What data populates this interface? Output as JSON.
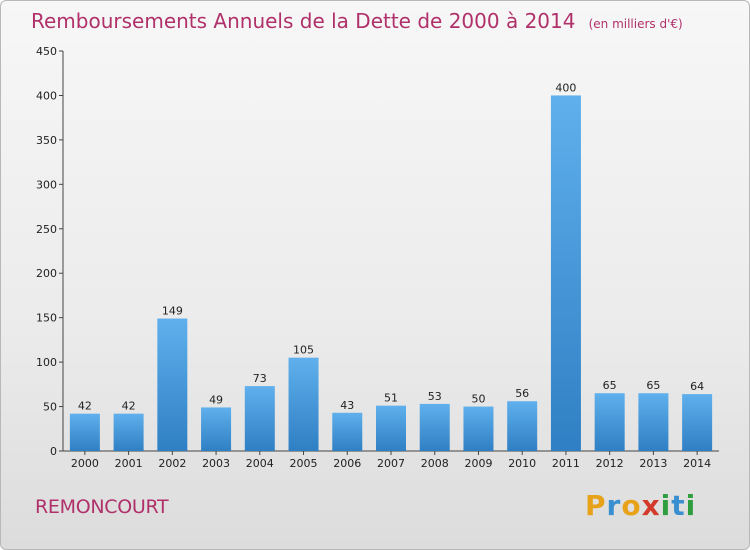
{
  "title": "Remboursements Annuels de la Dette de 2000 à 2014",
  "unit_note": "(en milliers d'€)",
  "commune": "REMONCOURT",
  "brand": {
    "letters": [
      "P",
      "r",
      "o",
      "x",
      "i",
      "t",
      "i"
    ],
    "colors": [
      "#e8a21a",
      "#3a8fd0",
      "#e8a21a",
      "#d33a2b",
      "#2f9e3f",
      "#3a8fd0",
      "#2f9e3f"
    ]
  },
  "colors": {
    "bar": "#4a9fe0",
    "title": "#b0306a"
  },
  "chart_data": {
    "type": "bar",
    "title": "Remboursements Annuels de la Dette de 2000 à 2014",
    "xlabel": "",
    "ylabel": "",
    "categories": [
      "2000",
      "2001",
      "2002",
      "2003",
      "2004",
      "2005",
      "2006",
      "2007",
      "2008",
      "2009",
      "2010",
      "2011",
      "2012",
      "2013",
      "2014"
    ],
    "values": [
      42,
      42,
      149,
      49,
      73,
      105,
      43,
      51,
      53,
      50,
      56,
      400,
      65,
      65,
      64
    ],
    "ylim": [
      0,
      450
    ],
    "yticks": [
      0,
      50,
      100,
      150,
      200,
      250,
      300,
      350,
      400,
      450
    ],
    "grid": false,
    "legend": "none"
  }
}
